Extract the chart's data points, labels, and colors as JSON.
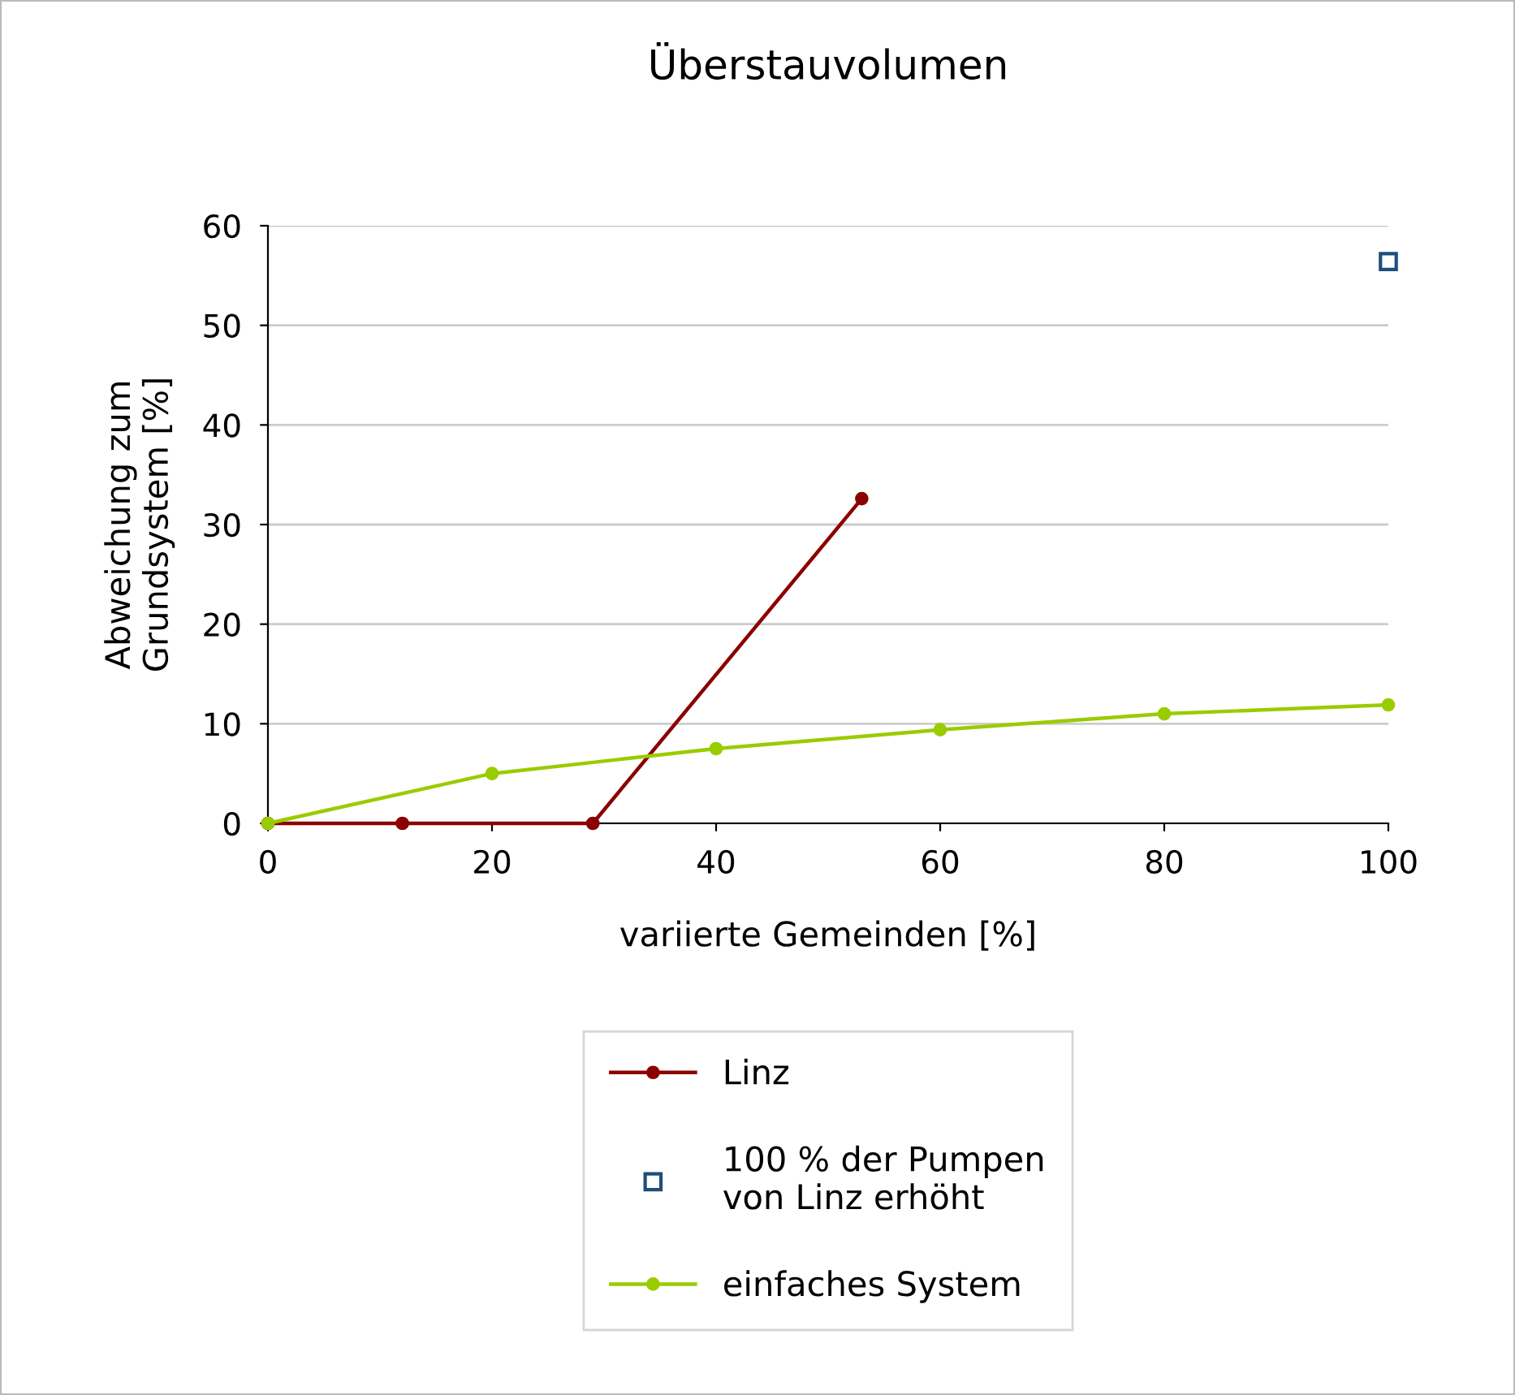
{
  "chart_data": {
    "type": "line",
    "title": "Überstauvolumen",
    "xlabel": "variierte Gemeinden [%]",
    "ylabel": "Abweichung zum\nGrundsystem [%]",
    "xlim": [
      0,
      100
    ],
    "xticks": [
      0,
      20,
      40,
      60,
      80,
      100
    ],
    "ylim": [
      0,
      60
    ],
    "yticks": [
      0,
      10,
      20,
      30,
      40,
      50,
      60
    ],
    "grid": "y",
    "legend": "bottom",
    "series": [
      {
        "name": "Linz",
        "marker": "circle",
        "color": "#8b0000",
        "x": [
          0,
          12,
          29,
          53
        ],
        "values": [
          0,
          0,
          0,
          32.6
        ]
      },
      {
        "name": "100 % der Pumpen\nvon Linz erhöht",
        "type": "scatter",
        "marker": "square",
        "color": "#1f4e79",
        "x": [
          100
        ],
        "values": [
          56.4
        ]
      },
      {
        "name": "einfaches System",
        "marker": "circle",
        "color": "#99cc00",
        "x": [
          0,
          20,
          40,
          60,
          80,
          100
        ],
        "values": [
          0,
          5,
          7.5,
          9.4,
          11,
          11.9
        ]
      }
    ]
  }
}
